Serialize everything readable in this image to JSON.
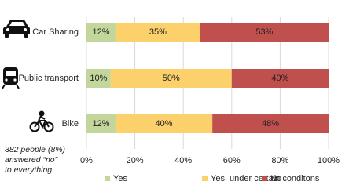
{
  "chart_data": {
    "type": "bar",
    "orientation": "horizontal",
    "stacked": true,
    "categories": [
      "Car Sharing",
      "Public transport",
      "Bike"
    ],
    "series": [
      {
        "name": "Yes",
        "color": "#c3d69b",
        "values": [
          12,
          10,
          12
        ],
        "value_labels": [
          "12%",
          "10%",
          "12%"
        ]
      },
      {
        "name": "Yes, under certain conditons",
        "color": "#fcd16b",
        "values": [
          35,
          50,
          40
        ],
        "value_labels": [
          "35%",
          "50%",
          "40%"
        ]
      },
      {
        "name": "No",
        "color": "#c0504d",
        "values": [
          53,
          40,
          48
        ],
        "value_labels": [
          "53%",
          "40%",
          "48%"
        ]
      }
    ],
    "xlim": [
      0,
      100
    ],
    "xticks": [
      {
        "value": 0,
        "label": "0%"
      },
      {
        "value": 20,
        "label": "20%"
      },
      {
        "value": 40,
        "label": "40%"
      },
      {
        "value": 60,
        "label": "60%"
      },
      {
        "value": 80,
        "label": "80%"
      },
      {
        "value": 100,
        "label": "100%"
      }
    ],
    "grid": true,
    "legend": "bottom",
    "annotation": [
      "382 people  (8%)",
      "answered “no”",
      "to everything"
    ]
  }
}
